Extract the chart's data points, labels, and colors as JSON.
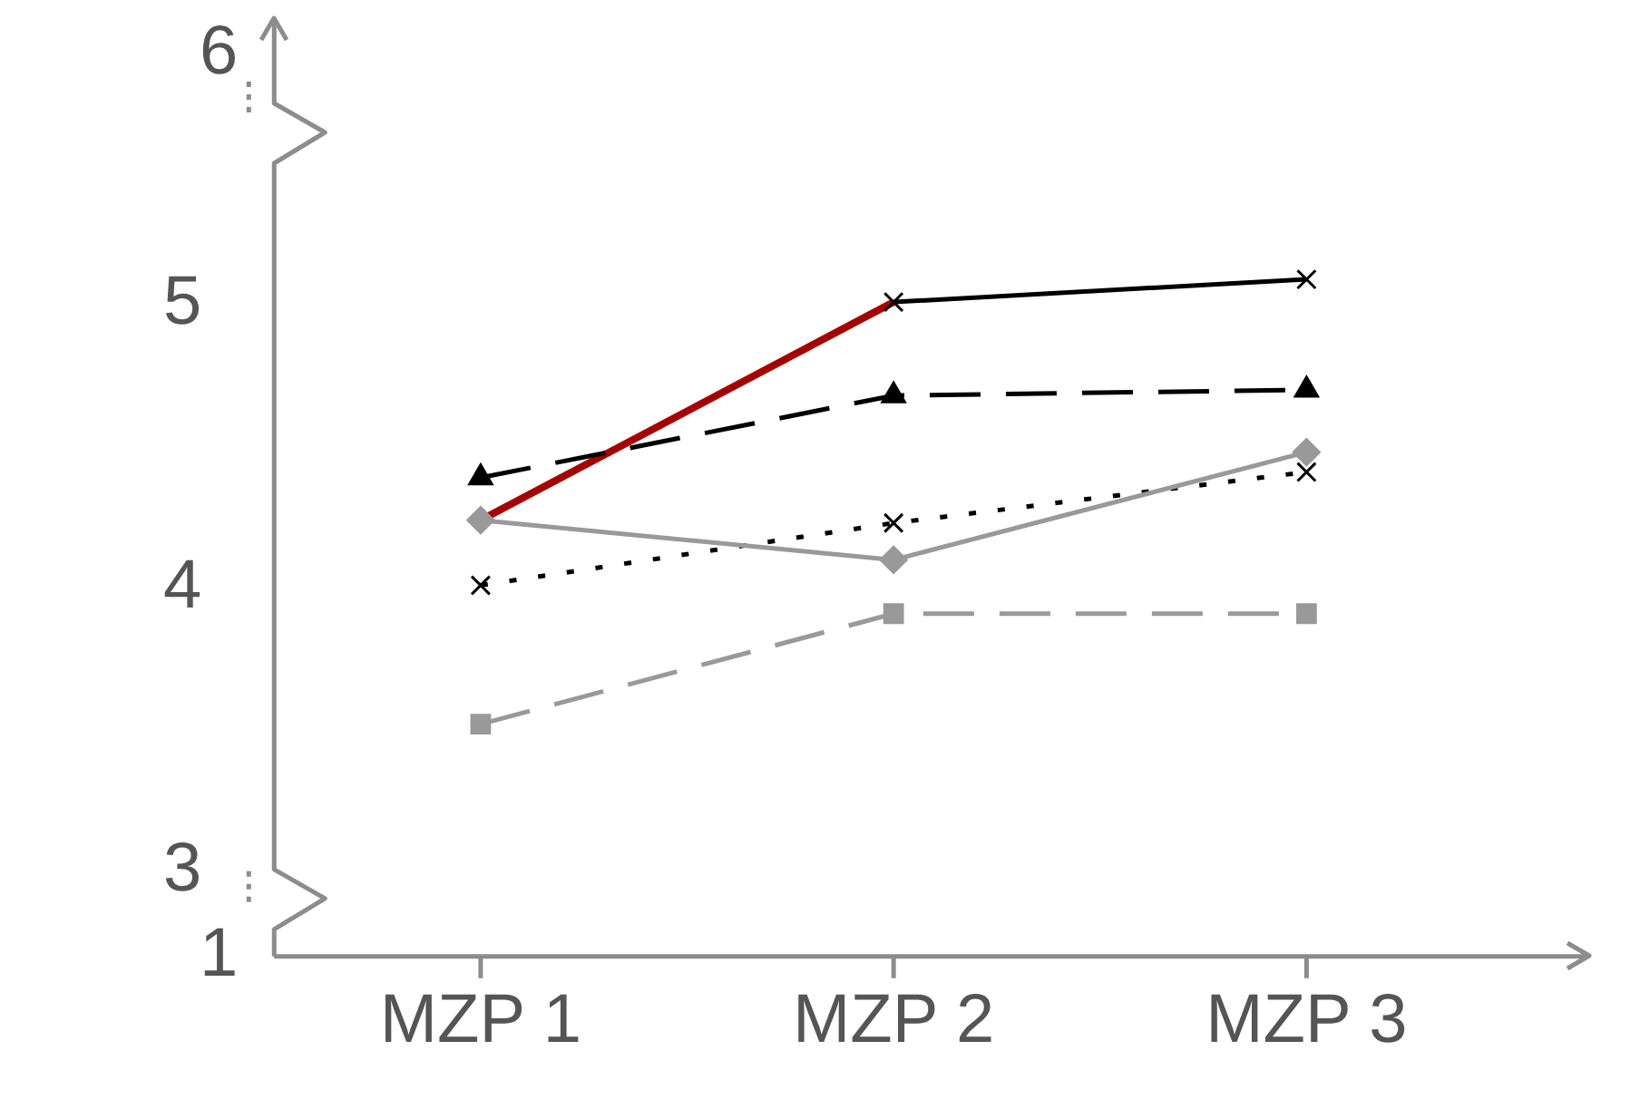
{
  "chart_data": {
    "type": "line",
    "categories": [
      "MZP 1",
      "MZP 2",
      "MZP 3"
    ],
    "series": [
      {
        "color": "#000000",
        "values": [
          null,
          5.01,
          5.09
        ],
        "marker": "cross",
        "line_style": "solid"
      },
      {
        "color": "#000000",
        "values": [
          4.39,
          4.68,
          4.7
        ],
        "marker": "triangle",
        "line_style": "dashed"
      },
      {
        "color": "#999999",
        "values": [
          4.24,
          4.1,
          4.48
        ],
        "marker": "diamond",
        "line_style": "solid"
      },
      {
        "color": "#000000",
        "values": [
          4.01,
          4.23,
          4.41
        ],
        "marker": "cross",
        "line_style": "dotted"
      },
      {
        "color": "#999999",
        "values": [
          3.52,
          3.91,
          3.91
        ],
        "marker": "square",
        "line_style": "dashed"
      },
      {
        "color": "#a50000",
        "values": [
          4.24,
          5.01,
          null
        ],
        "marker": "none",
        "line_style": "solid"
      }
    ],
    "ylim": [
      2.7,
      5.5
    ],
    "yticks": [
      3,
      4,
      5
    ],
    "grid": false,
    "legend": false,
    "annotations": [
      "6",
      "1"
    ]
  }
}
